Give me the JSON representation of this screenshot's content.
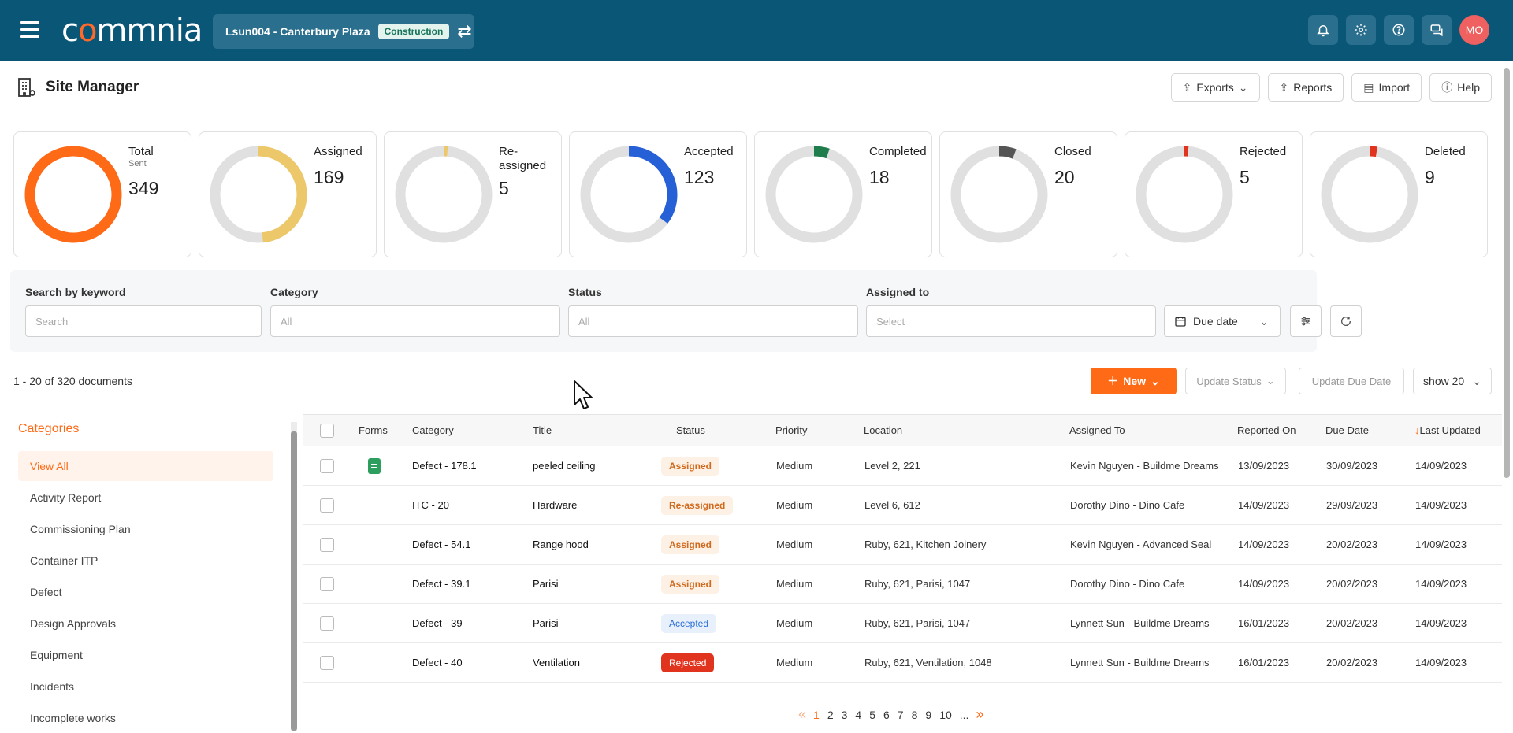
{
  "topbar": {
    "logo": "commnia",
    "project_name": "Lsun004 - Canterbury Plaza",
    "project_badge": "Construction",
    "avatar_initials": "MO",
    "icons": [
      "bell-icon",
      "gear-icon",
      "help-circle-icon",
      "chat-icon"
    ]
  },
  "page": {
    "title": "Site Manager",
    "actions": {
      "exports": "Exports",
      "reports": "Reports",
      "import": "Import",
      "help": "Help"
    }
  },
  "stats": [
    {
      "label": "Total",
      "sub": "Sent",
      "value": "349",
      "color": "#ff6a17",
      "fraction": 1.0
    },
    {
      "label": "Assigned",
      "value": "169",
      "color": "#edc86a",
      "fraction": 0.484
    },
    {
      "label": "Re-assigned",
      "value": "5",
      "color": "#edc86a",
      "fraction": 0.014
    },
    {
      "label": "Accepted",
      "value": "123",
      "color": "#2660d6",
      "fraction": 0.352
    },
    {
      "label": "Completed",
      "value": "18",
      "color": "#1e7d4b",
      "fraction": 0.052
    },
    {
      "label": "Closed",
      "value": "20",
      "color": "#555555",
      "fraction": 0.057
    },
    {
      "label": "Rejected",
      "value": "5",
      "color": "#e1341e",
      "fraction": 0.014
    },
    {
      "label": "Deleted",
      "value": "9",
      "color": "#e1341e",
      "fraction": 0.026
    }
  ],
  "filters": {
    "keyword_label": "Search by keyword",
    "keyword_placeholder": "Search",
    "category_label": "Category",
    "category_value": "All",
    "status_label": "Status",
    "status_value": "All",
    "assigned_label": "Assigned to",
    "assigned_value": "Select",
    "due_date": "Due date"
  },
  "toolbar": {
    "doc_count": "1 - 20 of 320 documents",
    "new_label": "New",
    "update_status": "Update Status",
    "update_due_date": "Update Due Date",
    "show": "show 20"
  },
  "categories": {
    "title": "Categories",
    "items": [
      "View All",
      "Activity Report",
      "Commissioning Plan",
      "Container ITP",
      "Defect",
      "Design Approvals",
      "Equipment",
      "Incidents",
      "Incomplete works"
    ]
  },
  "table": {
    "headers": {
      "forms": "Forms",
      "category": "Category",
      "title": "Title",
      "status": "Status",
      "priority": "Priority",
      "location": "Location",
      "assigned_to": "Assigned To",
      "reported_on": "Reported On",
      "due_date": "Due Date",
      "last_updated": "Last Updated"
    },
    "rows": [
      {
        "has_form": true,
        "category": "Defect - 178.1",
        "title": "peeled ceiling",
        "status": "Assigned",
        "status_type": "assigned",
        "priority": "Medium",
        "location": "Level 2, 221",
        "assigned_to": "Kevin Nguyen - Buildme Dreams",
        "reported_on": "13/09/2023",
        "due_date": "30/09/2023",
        "last_updated": "14/09/2023"
      },
      {
        "has_form": false,
        "category": "ITC - 20",
        "title": "Hardware",
        "status": "Re-assigned",
        "status_type": "reassigned",
        "priority": "Medium",
        "location": "Level 6, 612",
        "assigned_to": "Dorothy Dino - Dino Cafe",
        "reported_on": "14/09/2023",
        "due_date": "29/09/2023",
        "last_updated": "14/09/2023"
      },
      {
        "has_form": false,
        "category": "Defect - 54.1",
        "title": "Range hood",
        "status": "Assigned",
        "status_type": "assigned",
        "priority": "Medium",
        "location": "Ruby, 621, Kitchen Joinery",
        "assigned_to": "Kevin Nguyen - Advanced Seal",
        "reported_on": "14/09/2023",
        "due_date": "20/02/2023",
        "last_updated": "14/09/2023"
      },
      {
        "has_form": false,
        "category": "Defect - 39.1",
        "title": "Parisi",
        "status": "Assigned",
        "status_type": "assigned",
        "priority": "Medium",
        "location": "Ruby, 621, Parisi, 1047",
        "assigned_to": "Dorothy Dino - Dino Cafe",
        "reported_on": "14/09/2023",
        "due_date": "20/02/2023",
        "last_updated": "14/09/2023"
      },
      {
        "has_form": false,
        "category": "Defect - 39",
        "title": "Parisi",
        "status": "Accepted",
        "status_type": "accepted",
        "priority": "Medium",
        "location": "Ruby, 621, Parisi, 1047",
        "assigned_to": "Lynnett Sun - Buildme Dreams",
        "reported_on": "16/01/2023",
        "due_date": "20/02/2023",
        "last_updated": "14/09/2023"
      },
      {
        "has_form": false,
        "category": "Defect - 40",
        "title": "Ventilation",
        "status": "Rejected",
        "status_type": "rejected",
        "priority": "Medium",
        "location": "Ruby, 621, Ventilation, 1048",
        "assigned_to": "Lynnett Sun - Buildme Dreams",
        "reported_on": "16/01/2023",
        "due_date": "20/02/2023",
        "last_updated": "14/09/2023"
      }
    ]
  },
  "pagination": {
    "prev": "«",
    "pages": [
      "1",
      "2",
      "3",
      "4",
      "5",
      "6",
      "7",
      "8",
      "9",
      "10",
      "..."
    ],
    "current": "1",
    "next": "»"
  }
}
